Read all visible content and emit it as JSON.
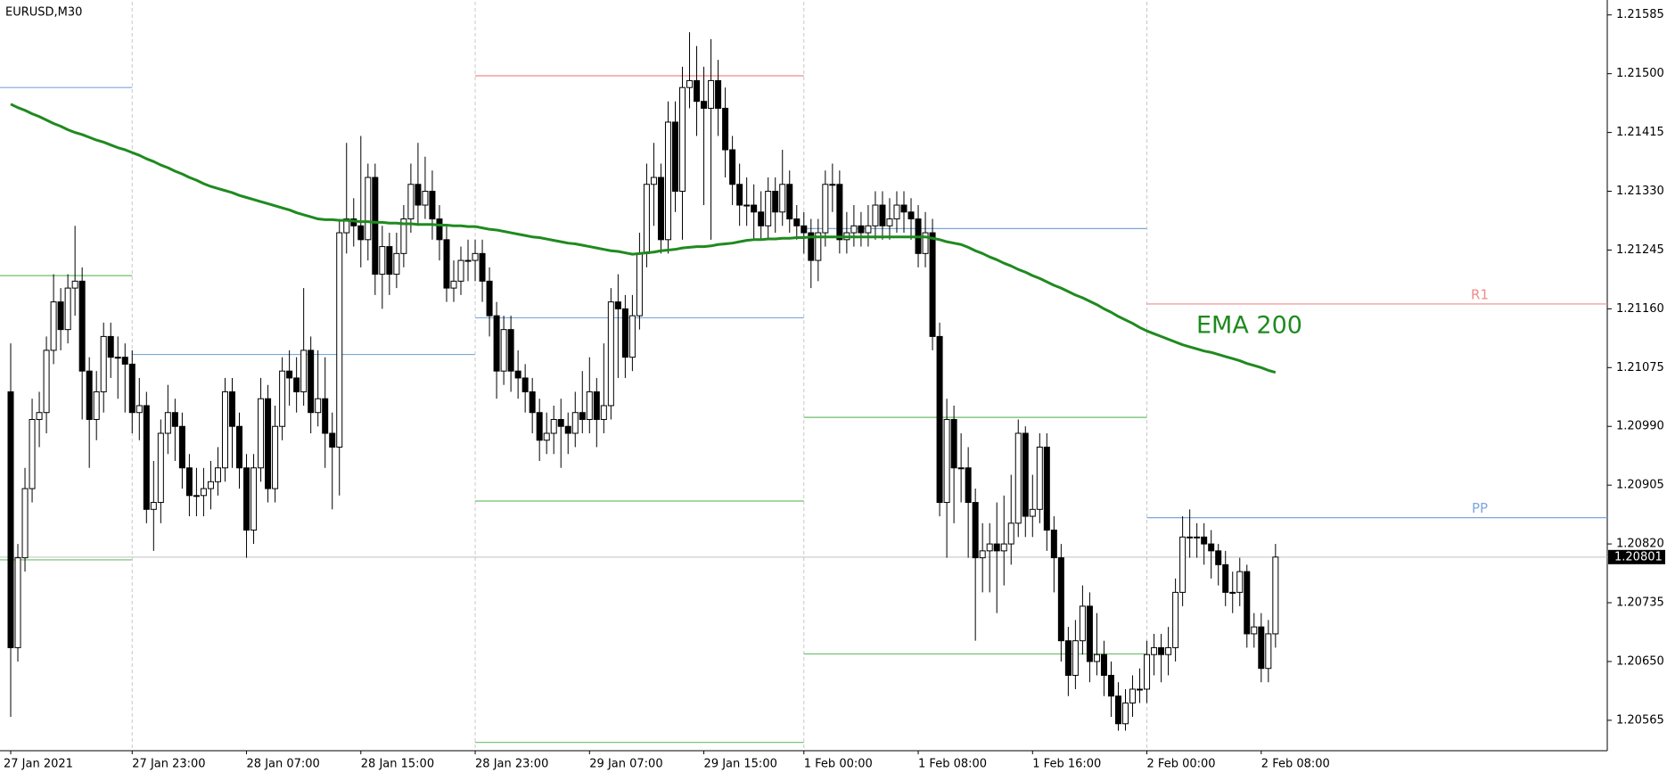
{
  "chart_data": {
    "type": "candlestick",
    "title": "EURUSD,M30",
    "categories": [
      "27 Jan 2021",
      null,
      null,
      null,
      null,
      null,
      null,
      null,
      null,
      null,
      null,
      null,
      null,
      null,
      null,
      null,
      null,
      "27 Jan 23:00",
      null,
      null,
      null,
      null,
      null,
      null,
      null,
      null,
      null,
      null,
      null,
      null,
      null,
      null,
      null,
      "28 Jan 07:00",
      null,
      null,
      null,
      null,
      null,
      null,
      null,
      null,
      null,
      null,
      null,
      null,
      null,
      null,
      null,
      "28 Jan 15:00",
      null,
      null,
      null,
      null,
      null,
      null,
      null,
      null,
      null,
      null,
      null,
      null,
      null,
      null,
      null,
      "28 Jan 23:00",
      null,
      null,
      null,
      null,
      null,
      null,
      null,
      null,
      null,
      null,
      null,
      null,
      null,
      null,
      null,
      "29 Jan 07:00",
      null,
      null,
      null,
      null,
      null,
      null,
      null,
      null,
      null,
      null,
      null,
      null,
      null,
      null,
      null,
      "29 Jan 15:00",
      null,
      null,
      null,
      null,
      null,
      null,
      null,
      null,
      null,
      null,
      null,
      null,
      null,
      "1 Feb 00:00",
      null,
      null,
      null,
      null,
      null,
      null,
      null,
      null,
      null,
      null,
      null,
      null,
      null,
      null,
      null,
      "1 Feb 08:00",
      null,
      null,
      null,
      null,
      null,
      null,
      null,
      null,
      null,
      null,
      null,
      null,
      null,
      null,
      null,
      "1 Feb 16:00",
      null,
      null,
      null,
      null,
      null,
      null,
      null,
      null,
      null,
      null,
      null,
      null,
      null,
      null,
      null,
      "2 Feb 00:00",
      null,
      null,
      null,
      null,
      null,
      null,
      null,
      null,
      null,
      null,
      null,
      null,
      null,
      null,
      null,
      "2 Feb 08:00",
      null,
      null
    ],
    "open": [
      1.2104,
      1.2067,
      1.208,
      1.209,
      1.21,
      1.2101,
      1.211,
      1.2117,
      1.2113,
      1.2119,
      1.212,
      1.2107,
      1.21,
      1.2104,
      1.2112,
      1.2109,
      1.2109,
      1.2108,
      1.2101,
      1.2102,
      1.2087,
      1.2088,
      1.2098,
      1.2101,
      1.2099,
      1.2093,
      1.2089,
      1.2089,
      1.209,
      1.2091,
      1.2093,
      1.2104,
      1.2099,
      1.2093,
      1.2084,
      1.2093,
      1.2103,
      1.209,
      1.2099,
      1.2107,
      1.2106,
      1.2104,
      1.211,
      1.2101,
      1.2103,
      1.2098,
      1.2096,
      1.2127,
      1.2129,
      1.2128,
      1.2126,
      1.2135,
      1.2121,
      1.2125,
      1.2121,
      1.2124,
      1.2129,
      1.2134,
      1.2131,
      1.2133,
      1.2129,
      1.2126,
      1.2119,
      1.212,
      1.2123,
      1.2123,
      1.2124,
      1.212,
      1.2115,
      1.2107,
      1.2113,
      1.2107,
      1.2106,
      1.2104,
      1.2101,
      1.2097,
      1.2098,
      1.21,
      1.2099,
      1.2098,
      1.2101,
      1.21,
      1.2104,
      1.21,
      1.2102,
      1.2117,
      1.2116,
      1.2109,
      1.2115,
      1.2124,
      1.2134,
      1.2135,
      1.2126,
      1.2143,
      1.2133,
      1.2148,
      1.2149,
      1.2146,
      1.2145,
      1.2149,
      1.2145,
      1.2139,
      1.2134,
      1.2131,
      1.2131,
      1.213,
      1.2128,
      1.2133,
      1.213,
      1.2134,
      1.2129,
      1.2128,
      1.2127,
      1.2123,
      1.2127,
      1.2134,
      1.2134,
      1.2126,
      1.2127,
      1.2128,
      1.2127,
      1.2128,
      1.2131,
      1.2128,
      1.2129,
      1.2131,
      1.213,
      1.2129,
      1.2124,
      1.2127,
      1.2112,
      1.2088,
      1.21,
      1.2093,
      1.2093,
      1.2088,
      1.208,
      1.2081,
      1.2082,
      1.2081,
      1.2082,
      1.2085,
      1.2098,
      1.2086,
      1.2087,
      1.2096,
      1.2084,
      1.208,
      1.2068,
      1.2063,
      1.2068,
      1.2073,
      1.2065,
      1.2066,
      1.2063,
      1.206,
      1.2056,
      1.2059,
      1.2061,
      1.2061,
      1.2066,
      1.2067,
      1.2066,
      1.2067,
      1.2075,
      1.2083,
      1.2083,
      1.2083,
      1.2082,
      1.2081,
      1.2079,
      1.2075,
      1.2075,
      1.2078,
      1.2069,
      1.207,
      1.2064,
      1.2069
    ],
    "high": [
      1.2111,
      1.2082,
      1.2093,
      1.2103,
      1.2104,
      1.2112,
      1.2121,
      1.2119,
      1.2121,
      1.2128,
      1.2122,
      1.2109,
      1.2107,
      1.2114,
      1.2114,
      1.2112,
      1.2111,
      1.211,
      1.2106,
      1.2104,
      1.2094,
      1.21,
      1.2105,
      1.2103,
      1.2101,
      1.2095,
      1.2093,
      1.2093,
      1.2094,
      1.2096,
      1.2106,
      1.2106,
      1.2101,
      1.2095,
      1.2095,
      1.2106,
      1.2105,
      1.2102,
      1.2109,
      1.211,
      1.2109,
      1.2119,
      1.2112,
      1.211,
      1.2109,
      1.2101,
      1.2129,
      1.214,
      1.2132,
      1.2141,
      1.2137,
      1.2137,
      1.2128,
      1.2127,
      1.2127,
      1.2131,
      1.2137,
      1.214,
      1.2138,
      1.2136,
      1.2131,
      1.2128,
      1.2123,
      1.2125,
      1.2126,
      1.2126,
      1.2126,
      1.2122,
      1.2117,
      1.2115,
      1.2115,
      1.211,
      1.2108,
      1.2106,
      1.2103,
      1.2101,
      1.2102,
      1.2103,
      1.2101,
      1.2104,
      1.2107,
      1.2109,
      1.2106,
      1.2111,
      1.2119,
      1.2121,
      1.2118,
      1.2118,
      1.2127,
      1.2137,
      1.214,
      1.2137,
      1.2146,
      1.2146,
      1.2151,
      1.2156,
      1.2154,
      1.2151,
      1.2155,
      1.2152,
      1.2148,
      1.2141,
      1.2137,
      1.2135,
      1.2134,
      1.2133,
      1.2135,
      1.2135,
      1.2139,
      1.2136,
      1.2131,
      1.213,
      1.2129,
      1.2129,
      1.2136,
      1.2137,
      1.2136,
      1.213,
      1.2131,
      1.213,
      1.2131,
      1.2133,
      1.2133,
      1.2132,
      1.2133,
      1.2133,
      1.2132,
      1.2131,
      1.213,
      1.2129,
      1.2114,
      1.2103,
      1.2102,
      1.2098,
      1.2096,
      1.209,
      1.2085,
      1.2085,
      1.2088,
      1.2089,
      1.2092,
      1.21,
      1.2099,
      1.2092,
      1.2098,
      1.2098,
      1.2086,
      1.2082,
      1.207,
      1.2071,
      1.2076,
      1.2075,
      1.2072,
      1.2068,
      1.2065,
      1.2062,
      1.2061,
      1.2063,
      1.2064,
      1.2068,
      1.2069,
      1.2069,
      1.207,
      1.2077,
      1.2086,
      1.2087,
      1.2085,
      1.2085,
      1.2084,
      1.2082,
      1.2081,
      1.2078,
      1.208,
      1.2079,
      1.2072,
      1.2072,
      1.2071,
      1.2082
    ],
    "low": [
      1.2057,
      1.2065,
      1.2078,
      1.2088,
      1.2096,
      1.2098,
      1.2108,
      1.211,
      1.2111,
      1.2115,
      1.21,
      1.2093,
      1.2097,
      1.2101,
      1.2106,
      1.2103,
      1.2101,
      1.2098,
      1.2097,
      1.2085,
      1.2081,
      1.2085,
      1.2095,
      1.2094,
      1.209,
      1.2086,
      1.2086,
      1.2086,
      1.2087,
      1.2089,
      1.2091,
      1.2093,
      1.209,
      1.208,
      1.2082,
      1.2091,
      1.2088,
      1.2088,
      1.2097,
      1.2102,
      1.2101,
      1.2102,
      1.2098,
      1.2099,
      1.2093,
      1.2087,
      1.2089,
      1.2124,
      1.2125,
      1.2122,
      1.2123,
      1.2118,
      1.2116,
      1.2118,
      1.2119,
      1.2122,
      1.2127,
      1.2128,
      1.2129,
      1.2126,
      1.2123,
      1.2117,
      1.2117,
      1.2118,
      1.212,
      1.212,
      1.2117,
      1.2112,
      1.2103,
      1.2105,
      1.2104,
      1.2103,
      1.2101,
      1.2098,
      1.2094,
      1.2095,
      1.2095,
      1.2093,
      1.2095,
      1.2096,
      1.2098,
      1.2098,
      1.2096,
      1.2098,
      1.21,
      1.2106,
      1.2106,
      1.2107,
      1.2113,
      1.2122,
      1.2128,
      1.2124,
      1.2124,
      1.213,
      1.2126,
      1.2145,
      1.2141,
      1.2131,
      1.2126,
      1.2141,
      1.2135,
      1.2131,
      1.2128,
      1.2128,
      1.2126,
      1.2126,
      1.2126,
      1.2127,
      1.2128,
      1.2127,
      1.2126,
      1.2124,
      1.2119,
      1.212,
      1.2125,
      1.213,
      1.2124,
      1.2124,
      1.2125,
      1.2125,
      1.2125,
      1.2126,
      1.2126,
      1.2126,
      1.2127,
      1.2127,
      1.2126,
      1.2122,
      1.2122,
      1.211,
      1.2086,
      1.208,
      1.2085,
      1.2088,
      1.208,
      1.2068,
      1.2075,
      1.2075,
      1.2072,
      1.2076,
      1.2079,
      1.2083,
      1.2083,
      1.2083,
      1.2085,
      1.2081,
      1.2075,
      1.2065,
      1.206,
      1.2061,
      1.2066,
      1.2062,
      1.2063,
      1.206,
      1.2057,
      1.2055,
      1.2055,
      1.2057,
      1.2059,
      1.2059,
      1.2063,
      1.2062,
      1.2063,
      1.2065,
      1.2073,
      1.208,
      1.208,
      1.2079,
      1.2077,
      1.2076,
      1.2073,
      1.2072,
      1.2073,
      1.2067,
      1.2067,
      1.2062,
      1.2062,
      1.2067
    ],
    "close": [
      1.2067,
      1.208,
      1.209,
      1.21,
      1.2101,
      1.211,
      1.2117,
      1.2113,
      1.2119,
      1.212,
      1.2107,
      1.21,
      1.2104,
      1.2112,
      1.2109,
      1.2109,
      1.2108,
      1.2101,
      1.2102,
      1.2087,
      1.2088,
      1.2098,
      1.2101,
      1.2099,
      1.2093,
      1.2089,
      1.2089,
      1.209,
      1.2091,
      1.2093,
      1.2104,
      1.2099,
      1.2093,
      1.2084,
      1.2093,
      1.2103,
      1.209,
      1.2099,
      1.2107,
      1.2106,
      1.2104,
      1.211,
      1.2101,
      1.2103,
      1.2098,
      1.2096,
      1.2127,
      1.2129,
      1.2128,
      1.2126,
      1.2135,
      1.2121,
      1.2125,
      1.2121,
      1.2124,
      1.2129,
      1.2134,
      1.2131,
      1.2133,
      1.2129,
      1.2126,
      1.2119,
      1.212,
      1.2123,
      1.2123,
      1.2124,
      1.212,
      1.2115,
      1.2107,
      1.2113,
      1.2107,
      1.2106,
      1.2104,
      1.2101,
      1.2097,
      1.2098,
      1.21,
      1.2099,
      1.2098,
      1.2101,
      1.21,
      1.2104,
      1.21,
      1.2102,
      1.2117,
      1.2116,
      1.2109,
      1.2115,
      1.2124,
      1.2134,
      1.2135,
      1.2126,
      1.2143,
      1.2133,
      1.2148,
      1.2149,
      1.2146,
      1.2145,
      1.2149,
      1.2145,
      1.2139,
      1.2134,
      1.2131,
      1.2131,
      1.213,
      1.2128,
      1.2133,
      1.213,
      1.2134,
      1.2129,
      1.2128,
      1.2127,
      1.2123,
      1.2127,
      1.2134,
      1.2134,
      1.2126,
      1.2127,
      1.2128,
      1.2127,
      1.2128,
      1.2131,
      1.2128,
      1.2129,
      1.2131,
      1.213,
      1.2129,
      1.2124,
      1.2127,
      1.2112,
      1.2088,
      1.21,
      1.2093,
      1.2093,
      1.2088,
      1.208,
      1.2081,
      1.2082,
      1.2081,
      1.2082,
      1.2085,
      1.2098,
      1.2086,
      1.2087,
      1.2096,
      1.2084,
      1.208,
      1.2068,
      1.2063,
      1.2068,
      1.2073,
      1.2065,
      1.2066,
      1.2063,
      1.206,
      1.2056,
      1.2059,
      1.2061,
      1.2061,
      1.2066,
      1.2067,
      1.2066,
      1.2067,
      1.2075,
      1.2083,
      1.2083,
      1.2083,
      1.2082,
      1.2081,
      1.2079,
      1.2075,
      1.2075,
      1.2078,
      1.2069,
      1.207,
      1.2064,
      1.2069,
      1.20801
    ],
    "series": [
      {
        "name": "EMA 200",
        "color": "#1f8a1f",
        "values": [
          1.21456,
          1.21451,
          1.21447,
          1.21442,
          1.21438,
          1.21433,
          1.21428,
          1.21424,
          1.21419,
          1.21415,
          1.21412,
          1.21408,
          1.21404,
          1.21401,
          1.21397,
          1.21393,
          1.2139,
          1.21386,
          1.21382,
          1.21377,
          1.21373,
          1.21368,
          1.21364,
          1.21359,
          1.21355,
          1.2135,
          1.21346,
          1.21341,
          1.21337,
          1.21334,
          1.21331,
          1.21328,
          1.21324,
          1.21321,
          1.21318,
          1.21315,
          1.21312,
          1.21309,
          1.21306,
          1.21303,
          1.21299,
          1.21296,
          1.21293,
          1.2129,
          1.21289,
          1.21289,
          1.21288,
          1.21288,
          1.21287,
          1.21286,
          1.21286,
          1.21285,
          1.21285,
          1.21284,
          1.21284,
          1.21283,
          1.21283,
          1.21282,
          1.21282,
          1.21282,
          1.21281,
          1.21281,
          1.2128,
          1.2128,
          1.21279,
          1.21279,
          1.21277,
          1.21275,
          1.21274,
          1.21272,
          1.2127,
          1.21268,
          1.21266,
          1.21264,
          1.21263,
          1.21261,
          1.21259,
          1.21257,
          1.21255,
          1.21254,
          1.21252,
          1.2125,
          1.21248,
          1.21246,
          1.21244,
          1.21243,
          1.21241,
          1.21239,
          1.2124,
          1.21241,
          1.21242,
          1.21244,
          1.21245,
          1.21246,
          1.21248,
          1.21249,
          1.2125,
          1.2125,
          1.21251,
          1.21253,
          1.21254,
          1.21255,
          1.21257,
          1.21259,
          1.2126,
          1.2126,
          1.21261,
          1.21261,
          1.21262,
          1.21262,
          1.21263,
          1.21263,
          1.21264,
          1.21264,
          1.21264,
          1.21264,
          1.21264,
          1.21264,
          1.21264,
          1.21264,
          1.21264,
          1.21264,
          1.21264,
          1.21264,
          1.21264,
          1.21264,
          1.21264,
          1.21264,
          1.21264,
          1.21262,
          1.2126,
          1.21257,
          1.21255,
          1.21253,
          1.21249,
          1.21244,
          1.2124,
          1.21235,
          1.21231,
          1.21226,
          1.21222,
          1.21217,
          1.21213,
          1.21208,
          1.21204,
          1.21199,
          1.21194,
          1.2119,
          1.21185,
          1.2118,
          1.21176,
          1.21171,
          1.21166,
          1.2116,
          1.21155,
          1.21149,
          1.21144,
          1.21139,
          1.21133,
          1.21128,
          1.21124,
          1.2112,
          1.21116,
          1.21112,
          1.21108,
          1.21105,
          1.21102,
          1.21099,
          1.21097,
          1.21094,
          1.21091,
          1.21088,
          1.21085,
          1.21081,
          1.21078,
          1.21075,
          1.21071,
          1.21068
        ]
      }
    ],
    "pivot_days": [
      {
        "start": 0,
        "levels": [
          {
            "value": 1.2148,
            "color": "#7ea7d8"
          },
          {
            "value": 1.21208,
            "color": "#6cbf6c"
          },
          {
            "value": 1.20797,
            "color": "#6cbf6c"
          }
        ]
      },
      {
        "start": 17,
        "levels": [
          {
            "value": 1.21094,
            "color": "#7ea7d8"
          }
        ]
      },
      {
        "start": 65,
        "levels": [
          {
            "value": 1.21497,
            "color": "#f08a8a"
          },
          {
            "value": 1.21147,
            "color": "#7ea7d8"
          },
          {
            "value": 1.20882,
            "color": "#6cbf6c"
          },
          {
            "value": 1.20533,
            "color": "#6cbf6c"
          }
        ]
      },
      {
        "start": 111,
        "levels": [
          {
            "value": 1.21276,
            "color": "#7ea7d8"
          },
          {
            "value": 1.21003,
            "color": "#6cbf6c"
          },
          {
            "value": 1.20661,
            "color": "#6cbf6c"
          }
        ]
      },
      {
        "start": 159,
        "levels": [
          {
            "label": "R1",
            "value": 1.21167,
            "color": "#f08a8a"
          },
          {
            "label": "PP",
            "value": 1.20858,
            "color": "#7ea7d8"
          }
        ]
      }
    ],
    "ylim": [
      1.20521,
      1.21604
    ],
    "yticks": [
      1.21585,
      {
        "value": 1.215,
        "label": "1.21500"
      },
      1.21415,
      {
        "value": 1.2133,
        "label": "1.21330"
      },
      1.21245,
      {
        "value": 1.2116,
        "label": "1.21160"
      },
      {
        "value": 1.21075,
        "label": "1.21075"
      },
      {
        "value": 1.2099,
        "label": "1.20990"
      },
      1.20905,
      {
        "value": 1.2082,
        "label": "1.20820"
      },
      1.20735,
      {
        "value": 1.2065,
        "label": "1.20650"
      },
      1.20565
    ],
    "bull_color": "#ffffff",
    "bear_color": "#000000"
  }
}
